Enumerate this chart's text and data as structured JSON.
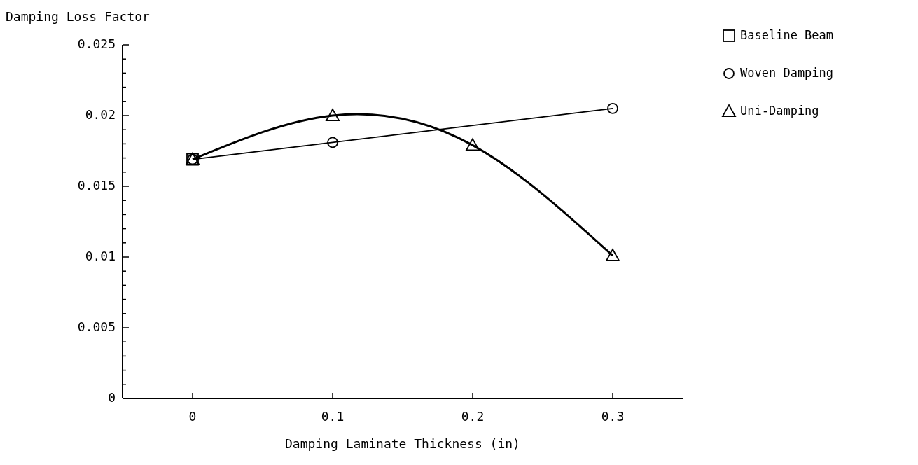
{
  "chart_data": {
    "type": "line",
    "ylabel": "Damping Loss Factor",
    "xlabel": "Damping Laminate Thickness (in)",
    "xlim": [
      -0.05,
      0.35
    ],
    "xticks": [
      0,
      0.1,
      0.2,
      0.3
    ],
    "ylim": [
      0,
      0.025
    ],
    "yticks": [
      0,
      {
        "value": 0.001,
        "label": null
      },
      {
        "value": 0.002,
        "label": null
      },
      {
        "value": 0.003,
        "label": null
      },
      {
        "value": 0.004,
        "label": null
      },
      0.005,
      {
        "value": 0.006,
        "label": null
      },
      {
        "value": 0.007,
        "label": null
      },
      {
        "value": 0.008,
        "label": null
      },
      {
        "value": 0.009,
        "label": null
      },
      0.01,
      {
        "value": 0.011,
        "label": null
      },
      {
        "value": 0.012,
        "label": null
      },
      {
        "value": 0.013,
        "label": null
      },
      {
        "value": 0.014,
        "label": null
      },
      0.015,
      {
        "value": 0.016,
        "label": null
      },
      {
        "value": 0.017,
        "label": null
      },
      {
        "value": 0.018,
        "label": null
      },
      {
        "value": 0.019,
        "label": null
      },
      0.02,
      {
        "value": 0.021,
        "label": null
      },
      {
        "value": 0.022,
        "label": null
      },
      {
        "value": 0.023,
        "label": null
      },
      {
        "value": 0.024,
        "label": null
      },
      0.025
    ],
    "grid": false,
    "legend": "top right",
    "series": [
      {
        "name": "Baseline Beam",
        "type": "scatter",
        "marker": "square",
        "color": "#000000",
        "x": [
          0
        ],
        "values": [
          0.0169
        ]
      },
      {
        "name": "Woven Damping",
        "marker": "circle",
        "color": "#000000",
        "x": [
          0,
          0.1,
          0.3
        ],
        "values": [
          0.0169,
          0.0181,
          0.0205
        ]
      },
      {
        "name": "Uni-Damping",
        "marker": "triangle",
        "color": "#000000",
        "x": [
          0,
          0.1,
          0.2,
          0.3
        ],
        "values": [
          0.0169,
          0.02,
          0.0179,
          0.0101
        ]
      }
    ]
  }
}
